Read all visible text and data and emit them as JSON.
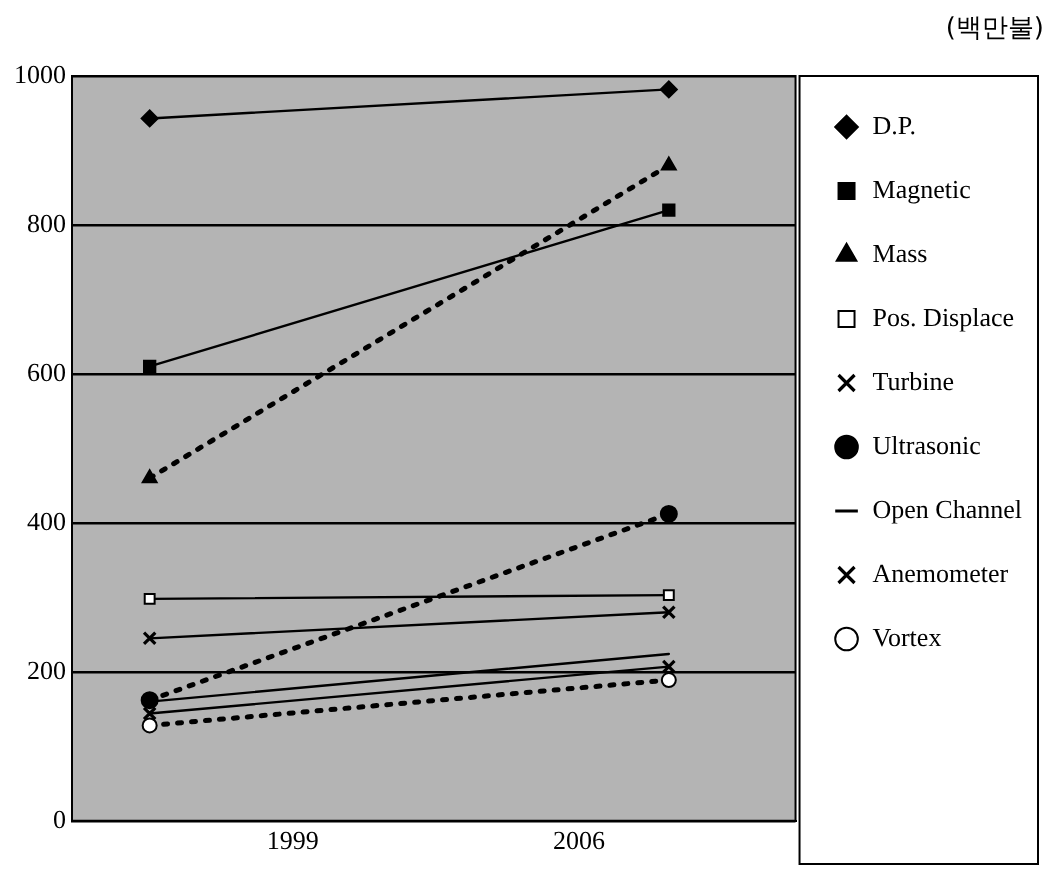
{
  "chart_data": {
    "type": "line",
    "annotations": [
      "(백만불)"
    ],
    "x": [
      1995.5,
      2008.2
    ],
    "xlim": [
      1993.6,
      2011.3
    ],
    "xticks": [
      1999,
      2006
    ],
    "ylim": [
      0,
      1000
    ],
    "yticks": [
      0,
      200,
      400,
      600,
      800,
      1000
    ],
    "grid": "y",
    "legend": "right",
    "line_style": "solid",
    "series": [
      {
        "name": "D.P.",
        "color": "#000000",
        "marker": "diamond",
        "values": [
          943,
          982
        ]
      },
      {
        "name": "Magnetic",
        "color": "#000000",
        "marker": "square",
        "values": [
          610,
          820
        ]
      },
      {
        "name": "Mass",
        "color": "#000000",
        "marker": "triangle",
        "line_style": "dotted",
        "values": [
          460,
          880
        ]
      },
      {
        "name": "Pos. Displace",
        "color": "#000000",
        "marker": "square",
        "values": [
          298,
          303
        ]
      },
      {
        "name": "Turbine",
        "color": "#000000",
        "marker": "cross",
        "values": [
          245,
          280
        ]
      },
      {
        "name": "Ultrasonic",
        "color": "#000000",
        "marker": "circle",
        "line_style": "dotted",
        "values": [
          162,
          412
        ]
      },
      {
        "name": "Open Channel",
        "color": "#000000",
        "marker": "none",
        "values": [
          160,
          224
        ]
      },
      {
        "name": "Anemometer",
        "color": "#000000",
        "marker": "cross",
        "values": [
          144,
          207
        ]
      },
      {
        "name": "Vortex",
        "color": "#000000",
        "marker": "circle",
        "line_style": "dotted",
        "values": [
          128,
          189
        ]
      }
    ]
  }
}
